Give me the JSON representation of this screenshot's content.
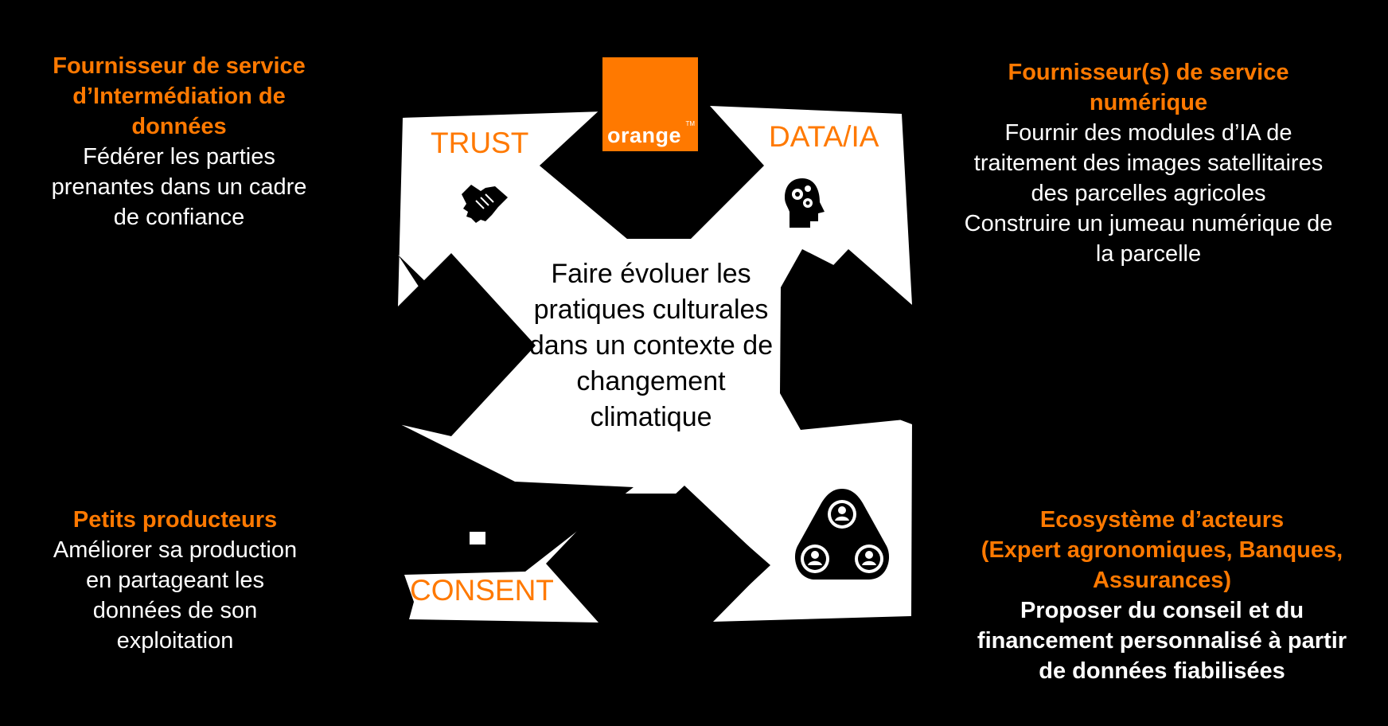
{
  "center": {
    "text": "Faire évoluer les pratiques culturales dans un contexte de changement climatique"
  },
  "logo": {
    "text": "orange",
    "tm": "TM"
  },
  "corners": {
    "trust": "TRUST",
    "data_ia": "DATA/IA",
    "consent": "CONSENT"
  },
  "icons": {
    "trust": "handshake-icon",
    "data_ia": "head-gears-icon",
    "consent": "farmer-icon",
    "ecosystem": "network-people-icon"
  },
  "blocks": {
    "top_left": {
      "title": [
        "Fournisseur de service",
        "d’Intermédiation de",
        "données"
      ],
      "body": [
        "Fédérer les parties",
        "prenantes dans un cadre",
        "de confiance"
      ]
    },
    "top_right": {
      "title": [
        "Fournisseur(s) de service",
        "numérique"
      ],
      "body": [
        "Fournir des modules d’IA de",
        "traitement des images satellitaires",
        "des parcelles agricoles",
        "Construire un jumeau numérique de",
        "la parcelle"
      ]
    },
    "bottom_left": {
      "title": [
        "Petits producteurs"
      ],
      "body": [
        "Améliorer sa production",
        "en partageant les",
        "données de son",
        "exploitation"
      ]
    },
    "bottom_right": {
      "title": [
        "Ecosystème d’acteurs",
        "(Expert agronomiques, Banques,",
        "Assurances)"
      ],
      "body": [
        "Proposer du conseil et du",
        "financement personnalisé à partir",
        "de données fiabilisées"
      ]
    }
  },
  "colors": {
    "accent": "#ff7900",
    "background": "#000000",
    "panel": "#ffffff"
  }
}
